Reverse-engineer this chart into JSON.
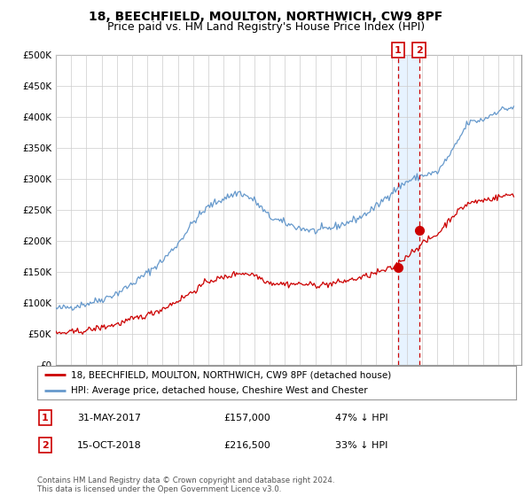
{
  "title": "18, BEECHFIELD, MOULTON, NORTHWICH, CW9 8PF",
  "subtitle": "Price paid vs. HM Land Registry's House Price Index (HPI)",
  "legend_line1": "18, BEECHFIELD, MOULTON, NORTHWICH, CW9 8PF (detached house)",
  "legend_line2": "HPI: Average price, detached house, Cheshire West and Chester",
  "footnote": "Contains HM Land Registry data © Crown copyright and database right 2024.\nThis data is licensed under the Open Government Licence v3.0.",
  "marker1_date": "31-MAY-2017",
  "marker1_price": "£157,000",
  "marker1_hpi": "47% ↓ HPI",
  "marker1_year": 2017.42,
  "marker1_value": 157000,
  "marker2_date": "15-OCT-2018",
  "marker2_price": "£216,500",
  "marker2_hpi": "33% ↓ HPI",
  "marker2_year": 2018.79,
  "marker2_value": 216500,
  "ylim": [
    0,
    500000
  ],
  "xlim": [
    1995.0,
    2025.5
  ],
  "hpi_color": "#6699CC",
  "price_color": "#CC0000",
  "marker_color": "#CC0000",
  "shade_color": "#DDEEFF",
  "grid_color": "#CCCCCC",
  "background_color": "#FFFFFF",
  "title_fontsize": 10,
  "subtitle_fontsize": 9
}
